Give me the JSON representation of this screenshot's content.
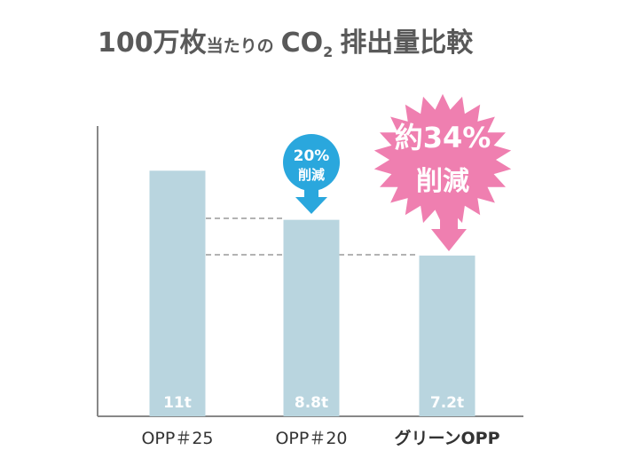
{
  "title": {
    "main": "100万枚",
    "small_1": "当たりの",
    "co": "CO",
    "sub": "2",
    "tail": "排出量比較"
  },
  "chart_data": {
    "type": "bar",
    "title": "100万枚当たりのCO2排出量比較",
    "categories": [
      "OPP＃25",
      "OPP＃20",
      "グリーンOPP"
    ],
    "values": [
      11,
      8.8,
      7.2
    ],
    "value_labels": [
      "11t",
      "8.8t",
      "7.2t"
    ],
    "unit": "t",
    "ylim": [
      0,
      13
    ],
    "grid": false,
    "colors": {
      "bar": "#b9d5df",
      "axis": "#888888",
      "dash": "#9a9a9a",
      "highlight_label": "#3a9b35",
      "callout_blue": "#2aa7dd",
      "callout_pink": "#ef7fb0"
    },
    "callouts": [
      {
        "target": 1,
        "lines": [
          "20%",
          "削減"
        ],
        "shape": "circle-arrow"
      },
      {
        "target": 2,
        "lines": [
          "約34%",
          "削減"
        ],
        "shape": "starburst-arrow"
      }
    ]
  }
}
